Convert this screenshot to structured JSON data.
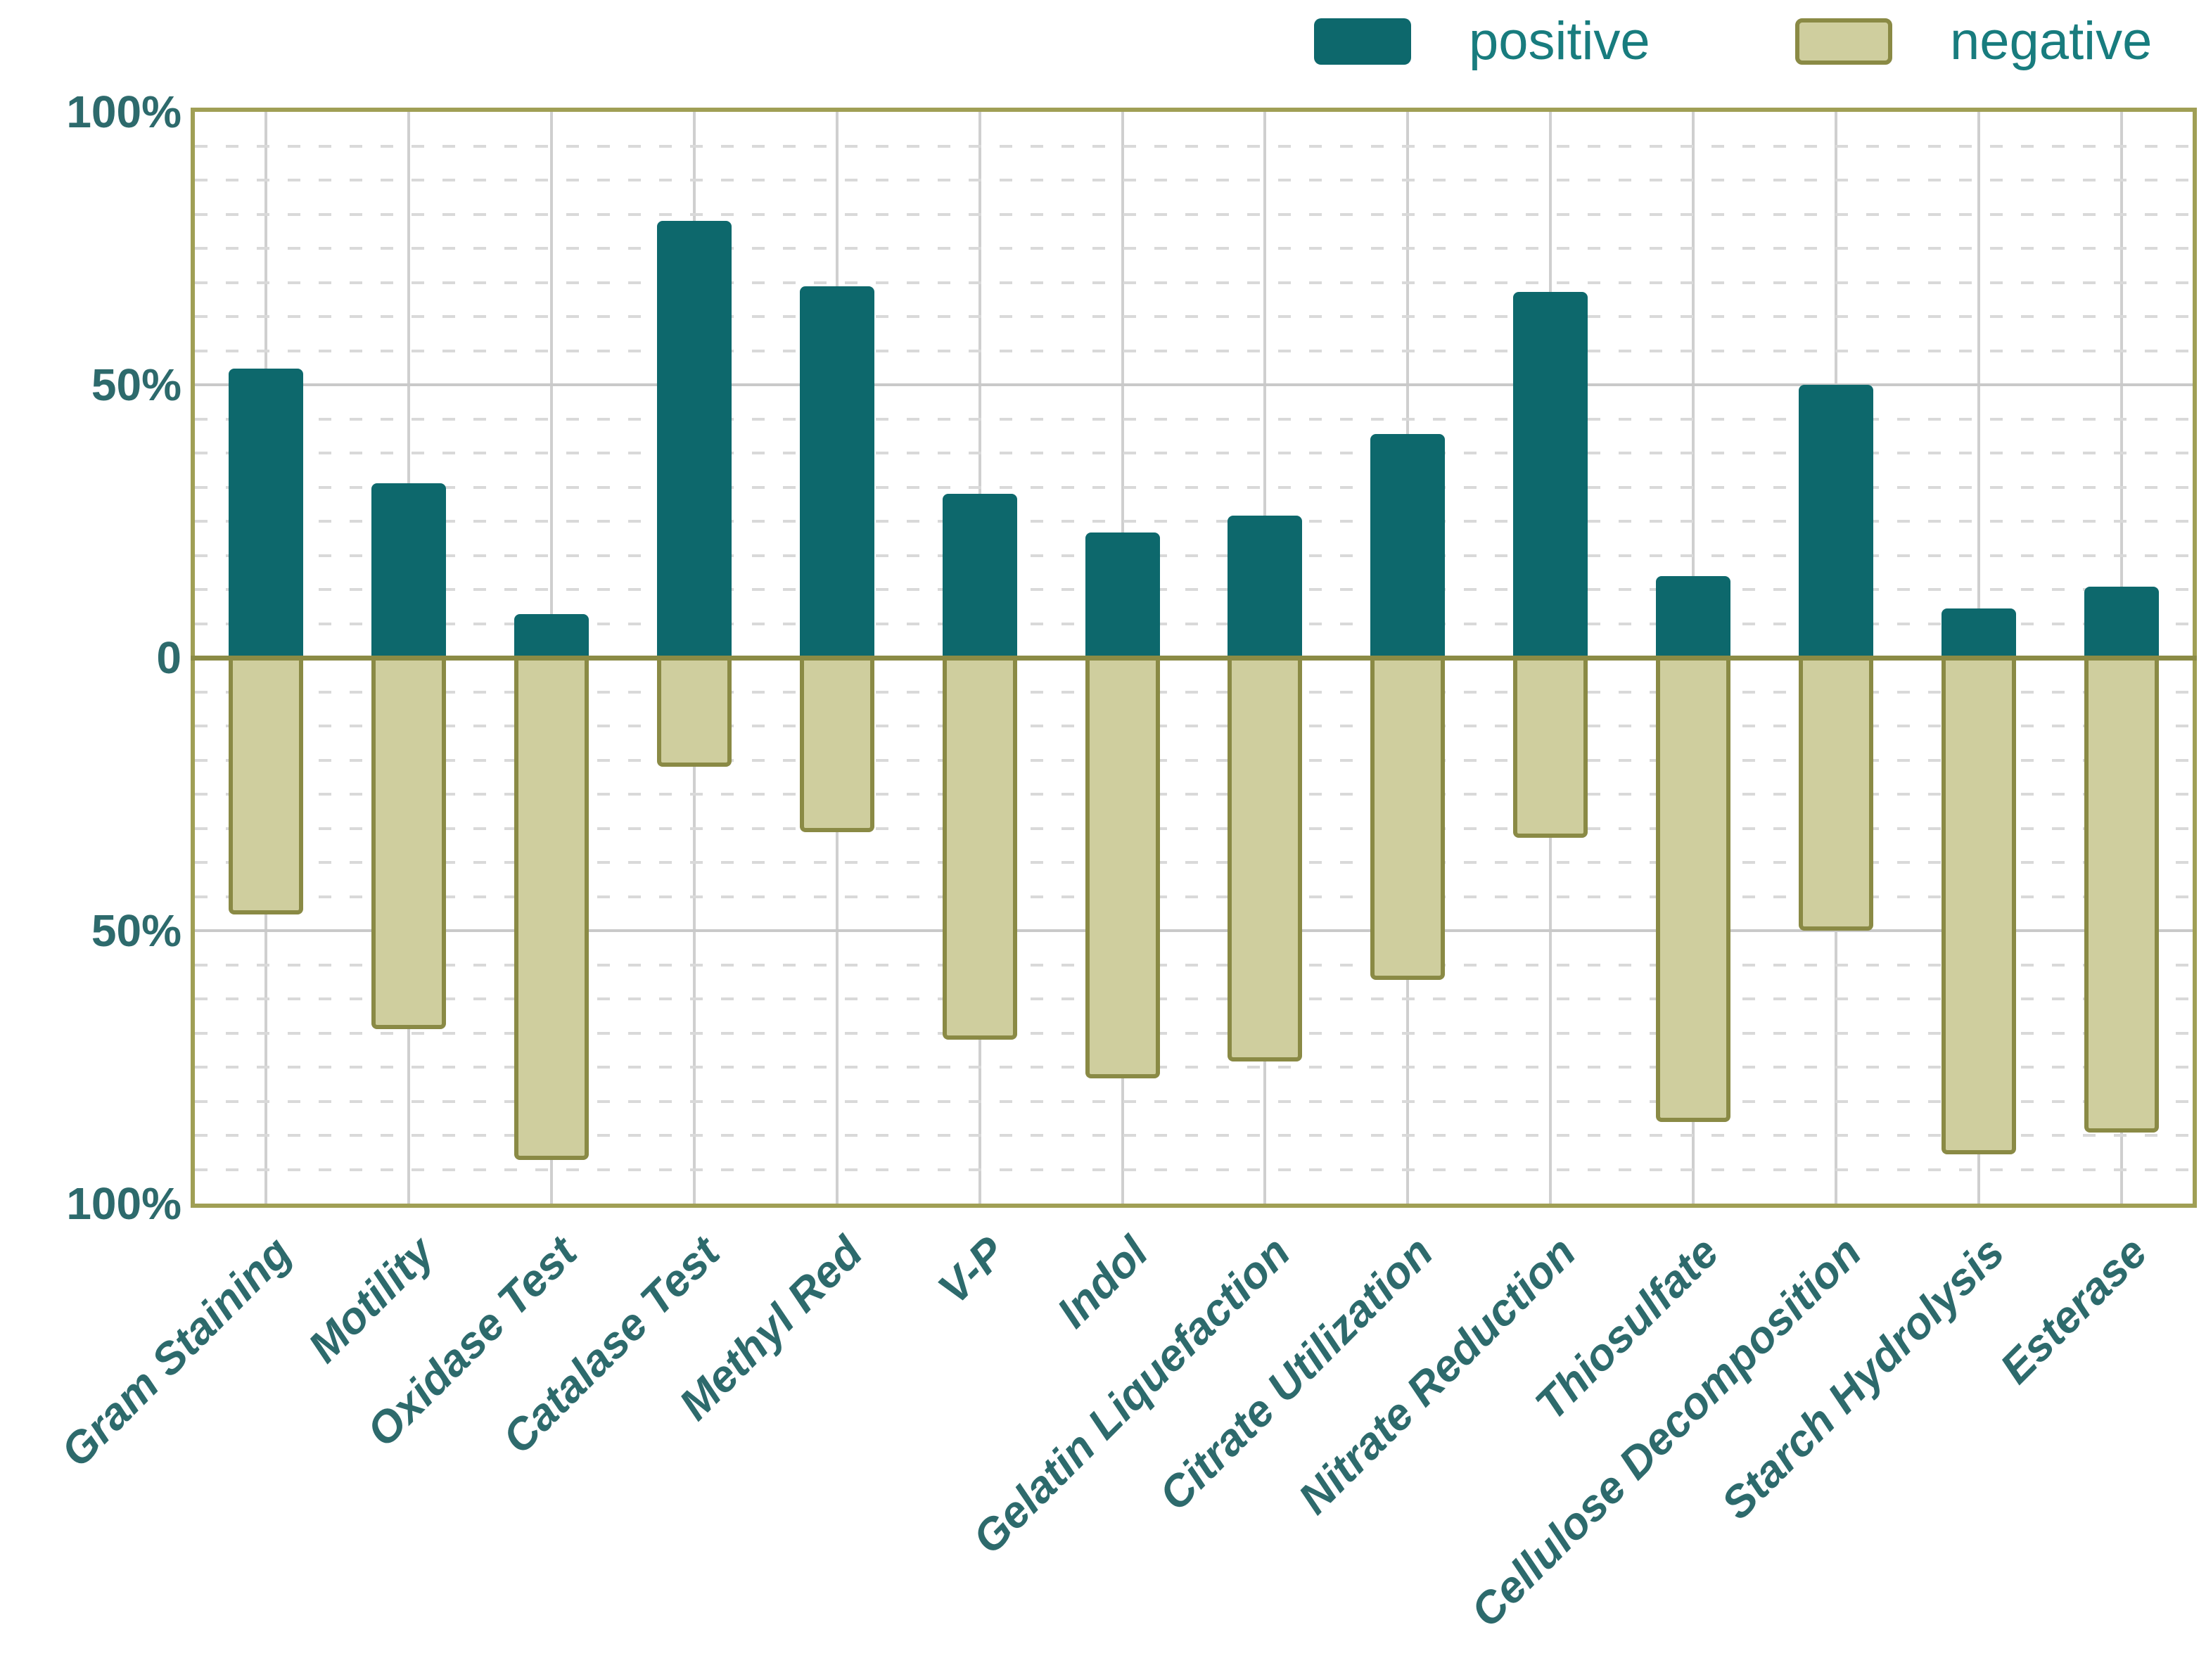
{
  "legend": {
    "positive_label": "positive",
    "negative_label": "negative"
  },
  "y_axis": {
    "tick_labels": [
      "100%",
      "50%",
      "0",
      "50%",
      "100%"
    ],
    "tick_values": [
      100,
      50,
      0,
      -50,
      -100
    ]
  },
  "chart_data": {
    "type": "bar",
    "subtype": "diverging-stacked-percentage",
    "title": "",
    "xlabel": "",
    "ylabel": "",
    "ylim": [
      -100,
      100
    ],
    "grid": "minor dashed horizontal lines every 6.25%, solid gray lines at +50% and -50%, solid gray vertical line at each category center, olive zero line",
    "legend_position": "top-right",
    "categories": [
      "Gram Staining",
      "Motility",
      "Oxidase Test",
      "Catalase Test",
      "Methyl Red",
      "V-P",
      "Indol",
      "Gelatin Liquefaction",
      "Citrate Utilization",
      "Nitrate Reduction",
      "Thiosulfate",
      "Cellulose Decomposition",
      "Starch Hydrolysis",
      "Esterase"
    ],
    "series": [
      {
        "name": "positive",
        "direction": "up",
        "unit": "%",
        "values": [
          53,
          32,
          8,
          80,
          68,
          30,
          23,
          26,
          41,
          67,
          15,
          50,
          9,
          13
        ]
      },
      {
        "name": "negative",
        "direction": "down",
        "unit": "%",
        "values": [
          47,
          68,
          92,
          20,
          32,
          70,
          77,
          74,
          59,
          33,
          85,
          50,
          91,
          87
        ]
      }
    ],
    "colors": {
      "positive_fill": "#0d686c",
      "negative_fill": "#cfce9e",
      "negative_border": "#8a8a45",
      "frame": "#a09f55",
      "zero_line": "#8b8b45",
      "grid_solid": "#c9c9c9",
      "grid_dashed": "#d9d9d9",
      "axis_text": "#2d6a6c",
      "legend_text": "#187c7e"
    }
  }
}
